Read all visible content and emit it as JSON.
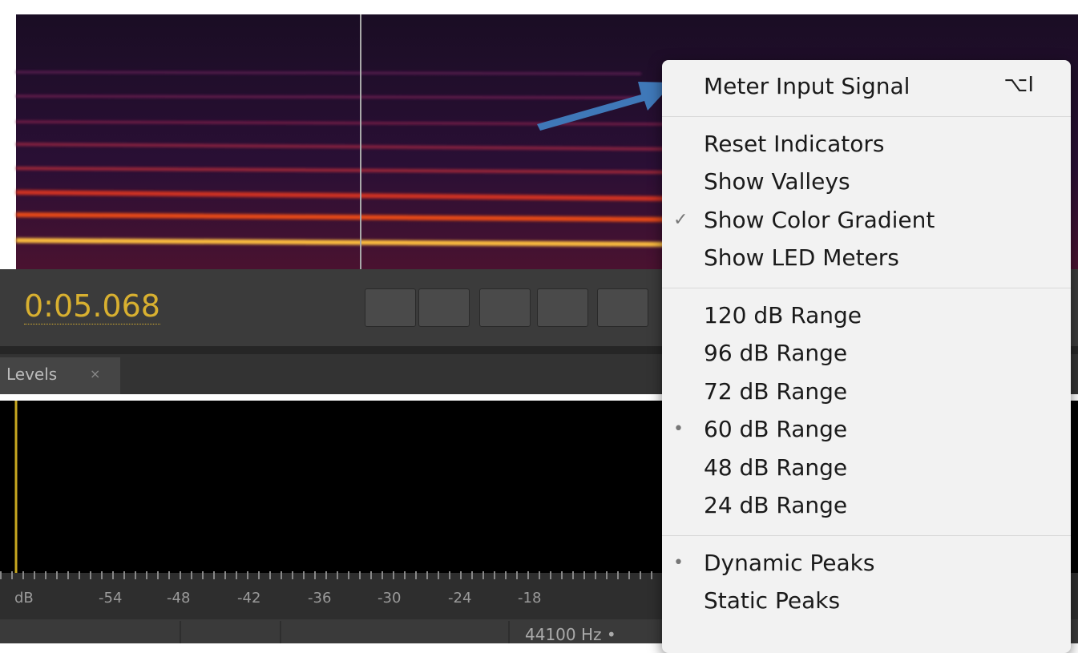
{
  "editor": {
    "time": "0:05.068",
    "tab": "Levels",
    "scale": [
      "dB",
      "-54",
      "-48",
      "-42",
      "-36",
      "-30",
      "-24",
      "-18"
    ],
    "status": "44100 Hz •"
  },
  "menu": {
    "sections": [
      [
        {
          "label": "Meter Input Signal",
          "shortcut": "⌥I"
        }
      ],
      [
        {
          "label": "Reset Indicators"
        },
        {
          "label": "Show Valleys"
        },
        {
          "label": "Show Color Gradient",
          "mark": "✓"
        },
        {
          "label": "Show LED Meters"
        }
      ],
      [
        {
          "label": "120 dB Range"
        },
        {
          "label": "96 dB Range"
        },
        {
          "label": "72 dB Range"
        },
        {
          "label": "60 dB Range",
          "mark": "•"
        },
        {
          "label": "48 dB Range"
        },
        {
          "label": "24 dB Range"
        }
      ],
      [
        {
          "label": "Dynamic Peaks",
          "mark": "•"
        },
        {
          "label": "Static Peaks"
        }
      ]
    ]
  }
}
